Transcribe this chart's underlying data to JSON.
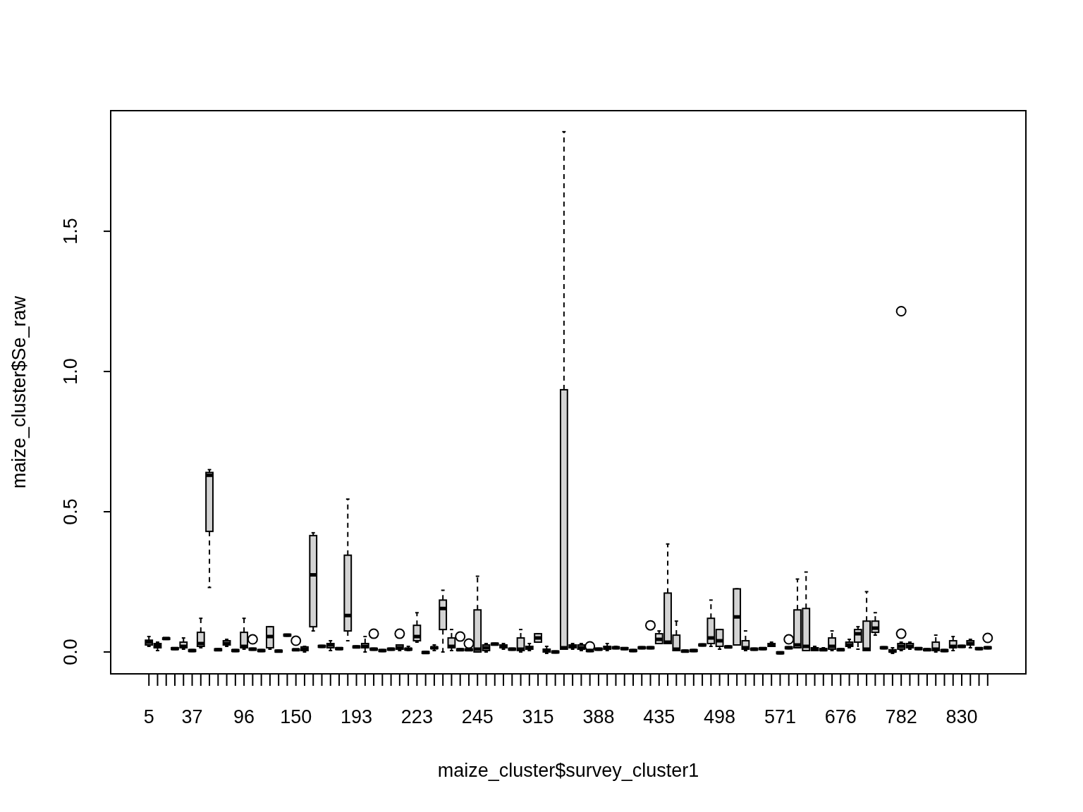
{
  "chart_data": {
    "type": "box",
    "xlabel": "maize_cluster$survey_cluster1",
    "ylabel": "maize_cluster$Se_raw",
    "ylim": [
      -0.078,
      1.93
    ],
    "yticks": [
      {
        "value": 0,
        "label": "0.0"
      },
      0.5,
      {
        "value": 1,
        "label": "1.0"
      },
      1.5
    ],
    "grid": false,
    "color": "#d3d3d3",
    "categories": [
      "5",
      null,
      null,
      null,
      null,
      "37",
      null,
      null,
      null,
      null,
      null,
      "96",
      null,
      null,
      null,
      null,
      null,
      "150",
      null,
      null,
      null,
      null,
      null,
      null,
      "193",
      null,
      null,
      null,
      null,
      null,
      null,
      "223",
      null,
      null,
      null,
      null,
      null,
      null,
      "245",
      null,
      null,
      null,
      null,
      null,
      null,
      "315",
      null,
      null,
      null,
      null,
      null,
      null,
      "388",
      null,
      null,
      null,
      null,
      null,
      null,
      "435",
      null,
      null,
      null,
      null,
      null,
      null,
      "498",
      null,
      null,
      null,
      null,
      null,
      null,
      "571",
      null,
      null,
      null,
      null,
      null,
      null,
      "676",
      null,
      null,
      null,
      null,
      null,
      null,
      "782",
      null,
      null,
      null,
      null,
      null,
      null,
      "830",
      null,
      null,
      null
    ],
    "boxes": [
      {
        "low": 0.02,
        "q1": 0.025,
        "median": 0.035,
        "q3": 0.042,
        "high": 0.055
      },
      {
        "low": 0.005,
        "q1": 0.015,
        "median": 0.022,
        "q3": 0.03,
        "high": 0.035
      },
      {
        "low": 0.045,
        "q1": 0.045,
        "median": 0.048,
        "q3": 0.05,
        "high": 0.05
      },
      {
        "low": 0.009,
        "q1": 0.009,
        "median": 0.012,
        "q3": 0.015,
        "high": 0.015
      },
      {
        "low": 0.01,
        "q1": 0.015,
        "median": 0.02,
        "q3": 0.035,
        "high": 0.05
      },
      {
        "low": 0.002,
        "q1": 0.002,
        "median": 0.005,
        "q3": 0.008,
        "high": 0.008
      },
      {
        "low": 0.015,
        "q1": 0.02,
        "median": 0.03,
        "q3": 0.07,
        "high": 0.12
      },
      {
        "low": 0.23,
        "q1": 0.43,
        "median": 0.63,
        "q3": 0.64,
        "high": 0.65
      },
      {
        "low": 0.005,
        "q1": 0.005,
        "median": 0.008,
        "q3": 0.011,
        "high": 0.011
      },
      {
        "low": 0.02,
        "q1": 0.025,
        "median": 0.03,
        "q3": 0.04,
        "high": 0.045
      },
      {
        "low": 0.002,
        "q1": 0.002,
        "median": 0.005,
        "q3": 0.008,
        "high": 0.008
      },
      {
        "low": 0.01,
        "q1": 0.015,
        "median": 0.02,
        "q3": 0.07,
        "high": 0.12
      },
      {
        "low": 0.007,
        "q1": 0.007,
        "median": 0.01,
        "q3": 0.013,
        "high": 0.013,
        "outliers": [
          0.045
        ]
      },
      {
        "low": 0.002,
        "q1": 0.002,
        "median": 0.005,
        "q3": 0.008,
        "high": 0.008
      },
      {
        "low": 0.01,
        "q1": 0.015,
        "median": 0.055,
        "q3": 0.09,
        "high": 0.09
      },
      {
        "low": 0.0,
        "q1": 0.0,
        "median": 0.003,
        "q3": 0.006,
        "high": 0.006
      },
      {
        "low": 0.057,
        "q1": 0.057,
        "median": 0.06,
        "q3": 0.063,
        "high": 0.063
      },
      {
        "low": 0.005,
        "q1": 0.005,
        "median": 0.008,
        "q3": 0.01,
        "high": 0.01,
        "outliers": [
          0.04
        ]
      },
      {
        "low": 0.0,
        "q1": 0.005,
        "median": 0.01,
        "q3": 0.018,
        "high": 0.02
      },
      {
        "low": 0.075,
        "q1": 0.09,
        "median": 0.275,
        "q3": 0.415,
        "high": 0.425
      },
      {
        "low": 0.017,
        "q1": 0.017,
        "median": 0.02,
        "q3": 0.023,
        "high": 0.023
      },
      {
        "low": 0.005,
        "q1": 0.015,
        "median": 0.025,
        "q3": 0.03,
        "high": 0.04
      },
      {
        "low": 0.009,
        "q1": 0.009,
        "median": 0.012,
        "q3": 0.015,
        "high": 0.015
      },
      {
        "low": 0.04,
        "q1": 0.075,
        "median": 0.13,
        "q3": 0.345,
        "high": 0.545
      },
      {
        "low": 0.015,
        "q1": 0.015,
        "median": 0.018,
        "q3": 0.021,
        "high": 0.021
      },
      {
        "low": 0.0,
        "q1": 0.015,
        "median": 0.02,
        "q3": 0.03,
        "high": 0.055
      },
      {
        "low": 0.007,
        "q1": 0.007,
        "median": 0.01,
        "q3": 0.013,
        "high": 0.013,
        "outliers": [
          0.065
        ]
      },
      {
        "low": 0.002,
        "q1": 0.002,
        "median": 0.005,
        "q3": 0.008,
        "high": 0.008
      },
      {
        "low": 0.007,
        "q1": 0.007,
        "median": 0.01,
        "q3": 0.013,
        "high": 0.013
      },
      {
        "low": 0.005,
        "q1": 0.01,
        "median": 0.015,
        "q3": 0.025,
        "high": 0.025,
        "outliers": [
          0.065
        ]
      },
      {
        "low": 0.005,
        "q1": 0.007,
        "median": 0.01,
        "q3": 0.013,
        "high": 0.02
      },
      {
        "low": 0.035,
        "q1": 0.04,
        "median": 0.055,
        "q3": 0.095,
        "high": 0.14
      },
      {
        "low": -0.005,
        "q1": -0.005,
        "median": -0.002,
        "q3": 0.001,
        "high": 0.001
      },
      {
        "low": 0.005,
        "q1": 0.012,
        "median": 0.015,
        "q3": 0.018,
        "high": 0.025
      },
      {
        "low": 0.0,
        "q1": 0.08,
        "median": 0.155,
        "q3": 0.185,
        "high": 0.22
      },
      {
        "low": 0.005,
        "q1": 0.015,
        "median": 0.02,
        "q3": 0.05,
        "high": 0.08
      },
      {
        "low": 0.005,
        "q1": 0.005,
        "median": 0.008,
        "q3": 0.011,
        "high": 0.011,
        "outliers": [
          0.055
        ]
      },
      {
        "low": 0.005,
        "q1": 0.005,
        "median": 0.008,
        "q3": 0.011,
        "high": 0.011,
        "outliers": [
          0.03
        ]
      },
      {
        "low": 0.0,
        "q1": 0.0,
        "median": 0.01,
        "q3": 0.15,
        "high": 0.27
      },
      {
        "low": 0.0,
        "q1": 0.005,
        "median": 0.015,
        "q3": 0.025,
        "high": 0.03
      },
      {
        "low": 0.025,
        "q1": 0.025,
        "median": 0.028,
        "q3": 0.031,
        "high": 0.031
      },
      {
        "low": 0.01,
        "q1": 0.015,
        "median": 0.02,
        "q3": 0.025,
        "high": 0.03
      },
      {
        "low": 0.007,
        "q1": 0.007,
        "median": 0.01,
        "q3": 0.013,
        "high": 0.013
      },
      {
        "low": 0.0,
        "q1": 0.005,
        "median": 0.01,
        "q3": 0.05,
        "high": 0.08
      },
      {
        "low": 0.005,
        "q1": 0.01,
        "median": 0.015,
        "q3": 0.02,
        "high": 0.03
      },
      {
        "low": 0.035,
        "q1": 0.035,
        "median": 0.05,
        "q3": 0.065,
        "high": 0.065
      },
      {
        "low": -0.005,
        "q1": 0.0,
        "median": 0.005,
        "q3": 0.01,
        "high": 0.02
      },
      {
        "low": -0.003,
        "q1": -0.003,
        "median": 0.0,
        "q3": 0.003,
        "high": 0.003
      },
      {
        "low": 0.01,
        "q1": 0.01,
        "median": 0.015,
        "q3": 0.935,
        "high": 1.855
      },
      {
        "low": 0.01,
        "q1": 0.015,
        "median": 0.02,
        "q3": 0.025,
        "high": 0.03
      },
      {
        "low": 0.005,
        "q1": 0.01,
        "median": 0.015,
        "q3": 0.025,
        "high": 0.03
      },
      {
        "low": 0.002,
        "q1": 0.002,
        "median": 0.005,
        "q3": 0.008,
        "high": 0.008,
        "outliers": [
          0.02
        ]
      },
      {
        "low": 0.007,
        "q1": 0.007,
        "median": 0.01,
        "q3": 0.013,
        "high": 0.013
      },
      {
        "low": 0.005,
        "q1": 0.01,
        "median": 0.015,
        "q3": 0.02,
        "high": 0.03
      },
      {
        "low": 0.012,
        "q1": 0.012,
        "median": 0.015,
        "q3": 0.018,
        "high": 0.02
      },
      {
        "low": 0.009,
        "q1": 0.009,
        "median": 0.012,
        "q3": 0.015,
        "high": 0.015
      },
      {
        "low": 0.002,
        "q1": 0.002,
        "median": 0.005,
        "q3": 0.008,
        "high": 0.008
      },
      {
        "low": 0.012,
        "q1": 0.012,
        "median": 0.015,
        "q3": 0.018,
        "high": 0.018
      },
      {
        "low": 0.012,
        "q1": 0.012,
        "median": 0.015,
        "q3": 0.018,
        "high": 0.018,
        "outliers": [
          0.095
        ]
      },
      {
        "low": 0.03,
        "q1": 0.03,
        "median": 0.045,
        "q3": 0.065,
        "high": 0.075
      },
      {
        "low": 0.03,
        "q1": 0.03,
        "median": 0.035,
        "q3": 0.21,
        "high": 0.385
      },
      {
        "low": 0.005,
        "q1": 0.005,
        "median": 0.01,
        "q3": 0.06,
        "high": 0.11
      },
      {
        "low": 0.0,
        "q1": 0.0,
        "median": 0.003,
        "q3": 0.006,
        "high": 0.006
      },
      {
        "low": 0.002,
        "q1": 0.002,
        "median": 0.005,
        "q3": 0.008,
        "high": 0.008
      },
      {
        "low": 0.022,
        "q1": 0.022,
        "median": 0.025,
        "q3": 0.028,
        "high": 0.028
      },
      {
        "low": 0.02,
        "q1": 0.03,
        "median": 0.05,
        "q3": 0.12,
        "high": 0.185
      },
      {
        "low": 0.01,
        "q1": 0.02,
        "median": 0.04,
        "q3": 0.08,
        "high": 0.08
      },
      {
        "low": 0.015,
        "q1": 0.015,
        "median": 0.018,
        "q3": 0.021,
        "high": 0.021
      },
      {
        "low": 0.025,
        "q1": 0.025,
        "median": 0.125,
        "q3": 0.225,
        "high": 0.225
      },
      {
        "low": 0.005,
        "q1": 0.01,
        "median": 0.015,
        "q3": 0.04,
        "high": 0.075
      },
      {
        "low": 0.007,
        "q1": 0.007,
        "median": 0.01,
        "q3": 0.013,
        "high": 0.013
      },
      {
        "low": 0.009,
        "q1": 0.009,
        "median": 0.012,
        "q3": 0.015,
        "high": 0.015
      },
      {
        "low": 0.02,
        "q1": 0.02,
        "median": 0.025,
        "q3": 0.03,
        "high": 0.035
      },
      {
        "low": -0.006,
        "q1": -0.006,
        "median": -0.003,
        "q3": 0.0,
        "high": 0.0
      },
      {
        "low": 0.012,
        "q1": 0.012,
        "median": 0.015,
        "q3": 0.018,
        "high": 0.018,
        "outliers": [
          0.045
        ]
      },
      {
        "low": 0.015,
        "q1": 0.015,
        "median": 0.025,
        "q3": 0.15,
        "high": 0.26
      },
      {
        "low": 0.005,
        "q1": 0.005,
        "median": 0.02,
        "q3": 0.155,
        "high": 0.285
      },
      {
        "low": 0.005,
        "q1": 0.005,
        "median": 0.01,
        "q3": 0.015,
        "high": 0.02
      },
      {
        "low": 0.005,
        "q1": 0.005,
        "median": 0.008,
        "q3": 0.012,
        "high": 0.015
      },
      {
        "low": 0.005,
        "q1": 0.01,
        "median": 0.02,
        "q3": 0.05,
        "high": 0.075
      },
      {
        "low": 0.005,
        "q1": 0.005,
        "median": 0.008,
        "q3": 0.011,
        "high": 0.011
      },
      {
        "low": 0.015,
        "q1": 0.02,
        "median": 0.025,
        "q3": 0.035,
        "high": 0.045
      },
      {
        "low": 0.01,
        "q1": 0.035,
        "median": 0.065,
        "q3": 0.08,
        "high": 0.09
      },
      {
        "low": 0.005,
        "q1": 0.005,
        "median": 0.01,
        "q3": 0.11,
        "high": 0.215
      },
      {
        "low": 0.06,
        "q1": 0.07,
        "median": 0.085,
        "q3": 0.11,
        "high": 0.14
      },
      {
        "low": 0.012,
        "q1": 0.012,
        "median": 0.015,
        "q3": 0.018,
        "high": 0.018
      },
      {
        "low": -0.005,
        "q1": 0.0,
        "median": 0.003,
        "q3": 0.008,
        "high": 0.015
      },
      {
        "low": 0.005,
        "q1": 0.01,
        "median": 0.02,
        "q3": 0.03,
        "high": 0.035,
        "outliers": [
          0.065,
          1.215
        ]
      },
      {
        "low": 0.01,
        "q1": 0.015,
        "median": 0.02,
        "q3": 0.03,
        "high": 0.035
      },
      {
        "low": 0.009,
        "q1": 0.009,
        "median": 0.012,
        "q3": 0.015,
        "high": 0.015
      },
      {
        "low": 0.005,
        "q1": 0.005,
        "median": 0.008,
        "q3": 0.011,
        "high": 0.011
      },
      {
        "low": 0.0,
        "q1": 0.005,
        "median": 0.01,
        "q3": 0.035,
        "high": 0.06
      },
      {
        "low": 0.002,
        "q1": 0.002,
        "median": 0.005,
        "q3": 0.008,
        "high": 0.008
      },
      {
        "low": 0.005,
        "q1": 0.015,
        "median": 0.02,
        "q3": 0.04,
        "high": 0.055
      },
      {
        "low": 0.017,
        "q1": 0.017,
        "median": 0.02,
        "q3": 0.023,
        "high": 0.023
      },
      {
        "low": 0.015,
        "q1": 0.025,
        "median": 0.03,
        "q3": 0.04,
        "high": 0.045
      },
      {
        "low": 0.009,
        "q1": 0.009,
        "median": 0.012,
        "q3": 0.015,
        "high": 0.015
      },
      {
        "low": 0.012,
        "q1": 0.012,
        "median": 0.015,
        "q3": 0.018,
        "high": 0.018,
        "outliers": [
          0.05
        ]
      }
    ]
  }
}
